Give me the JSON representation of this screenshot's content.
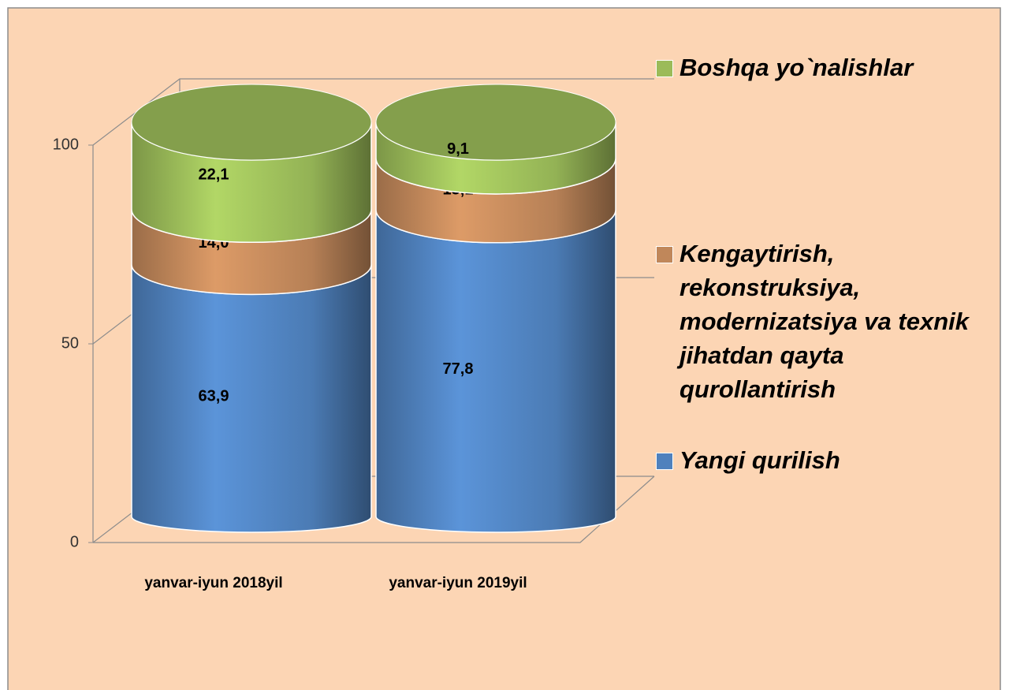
{
  "chart_data": {
    "type": "bar3d_cylinder_stacked",
    "categories": [
      "yanvar-iyun 2018yil",
      "yanvar-iyun 2019yil"
    ],
    "series": [
      {
        "name": "Yangi qurilish",
        "color": "#4f81bd",
        "values": [
          63.9,
          77.8
        ],
        "value_labels": [
          "63,9",
          "77,8"
        ]
      },
      {
        "name": "Kengaytirish, rekonstruksiya, modernizatsiya va texnik jihatdan qayta qurollantirish",
        "color": "#c0875a",
        "values": [
          14.0,
          13.1
        ],
        "value_labels": [
          "14,0",
          "13,1"
        ]
      },
      {
        "name": "Boshqa yo`nalishlar",
        "color": "#9bbb59",
        "values": [
          22.1,
          9.1
        ],
        "value_labels": [
          "22,1",
          "9,1"
        ]
      }
    ],
    "ylim": [
      0,
      100
    ],
    "yticks": [
      0,
      50,
      100
    ],
    "grid": true,
    "legend": "right"
  }
}
